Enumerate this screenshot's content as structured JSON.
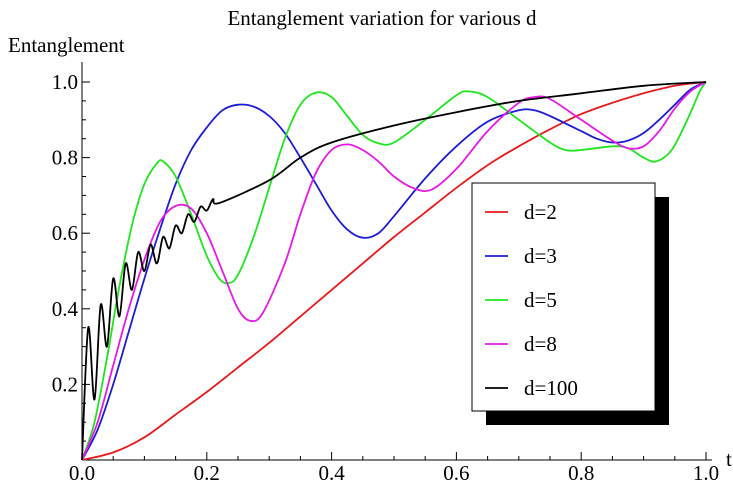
{
  "chart_data": {
    "type": "line",
    "title": "Entanglement variation for various d",
    "xlabel": "t",
    "ylabel": "Entanglement",
    "xlim": [
      0,
      1.0
    ],
    "ylim": [
      0,
      1.0
    ],
    "x_ticks": [
      0.0,
      0.2,
      0.4,
      0.6,
      0.8,
      1.0
    ],
    "y_ticks": [
      0.2,
      0.4,
      0.6,
      0.8,
      1.0
    ],
    "x_tick_labels": [
      "0.0",
      "0.2",
      "0.4",
      "0.6",
      "0.8",
      "1.0"
    ],
    "y_tick_labels": [
      "0.2",
      "0.4",
      "0.6",
      "0.8",
      "1.0"
    ],
    "grid": false,
    "legend_position": "right",
    "series": [
      {
        "name": "d=2",
        "color": "#e8191c",
        "points": [
          [
            0,
            0
          ],
          [
            0.05,
            0.02
          ],
          [
            0.1,
            0.06
          ],
          [
            0.15,
            0.12
          ],
          [
            0.2,
            0.18
          ],
          [
            0.25,
            0.245
          ],
          [
            0.3,
            0.31
          ],
          [
            0.35,
            0.38
          ],
          [
            0.4,
            0.45
          ],
          [
            0.45,
            0.52
          ],
          [
            0.5,
            0.59
          ],
          [
            0.55,
            0.655
          ],
          [
            0.6,
            0.72
          ],
          [
            0.65,
            0.78
          ],
          [
            0.7,
            0.83
          ],
          [
            0.75,
            0.875
          ],
          [
            0.8,
            0.915
          ],
          [
            0.85,
            0.945
          ],
          [
            0.9,
            0.97
          ],
          [
            0.95,
            0.99
          ],
          [
            1.0,
            1.0
          ]
        ]
      },
      {
        "name": "d=3",
        "color": "#1c1cd6",
        "points": [
          [
            0,
            0
          ],
          [
            0.025,
            0.08
          ],
          [
            0.05,
            0.2
          ],
          [
            0.075,
            0.34
          ],
          [
            0.1,
            0.48
          ],
          [
            0.125,
            0.61
          ],
          [
            0.15,
            0.73
          ],
          [
            0.175,
            0.82
          ],
          [
            0.2,
            0.88
          ],
          [
            0.225,
            0.925
          ],
          [
            0.25,
            0.94
          ],
          [
            0.275,
            0.935
          ],
          [
            0.3,
            0.91
          ],
          [
            0.325,
            0.865
          ],
          [
            0.35,
            0.8
          ],
          [
            0.375,
            0.73
          ],
          [
            0.4,
            0.66
          ],
          [
            0.425,
            0.61
          ],
          [
            0.45,
            0.588
          ],
          [
            0.475,
            0.6
          ],
          [
            0.5,
            0.645
          ],
          [
            0.55,
            0.745
          ],
          [
            0.6,
            0.83
          ],
          [
            0.65,
            0.895
          ],
          [
            0.7,
            0.925
          ],
          [
            0.725,
            0.925
          ],
          [
            0.75,
            0.91
          ],
          [
            0.8,
            0.87
          ],
          [
            0.825,
            0.85
          ],
          [
            0.85,
            0.84
          ],
          [
            0.875,
            0.845
          ],
          [
            0.9,
            0.865
          ],
          [
            0.925,
            0.9
          ],
          [
            0.95,
            0.94
          ],
          [
            0.975,
            0.98
          ],
          [
            1.0,
            1.0
          ]
        ]
      },
      {
        "name": "d=5",
        "color": "#1fe51f",
        "points": [
          [
            0,
            0
          ],
          [
            0.02,
            0.1
          ],
          [
            0.04,
            0.27
          ],
          [
            0.06,
            0.46
          ],
          [
            0.08,
            0.62
          ],
          [
            0.1,
            0.73
          ],
          [
            0.12,
            0.785
          ],
          [
            0.13,
            0.79
          ],
          [
            0.15,
            0.75
          ],
          [
            0.175,
            0.65
          ],
          [
            0.2,
            0.54
          ],
          [
            0.22,
            0.48
          ],
          [
            0.235,
            0.468
          ],
          [
            0.25,
            0.49
          ],
          [
            0.275,
            0.59
          ],
          [
            0.3,
            0.72
          ],
          [
            0.325,
            0.85
          ],
          [
            0.35,
            0.94
          ],
          [
            0.375,
            0.972
          ],
          [
            0.4,
            0.96
          ],
          [
            0.425,
            0.91
          ],
          [
            0.45,
            0.86
          ],
          [
            0.475,
            0.838
          ],
          [
            0.5,
            0.84
          ],
          [
            0.55,
            0.9
          ],
          [
            0.6,
            0.965
          ],
          [
            0.62,
            0.975
          ],
          [
            0.65,
            0.96
          ],
          [
            0.7,
            0.9
          ],
          [
            0.75,
            0.84
          ],
          [
            0.775,
            0.82
          ],
          [
            0.8,
            0.82
          ],
          [
            0.85,
            0.83
          ],
          [
            0.875,
            0.825
          ],
          [
            0.9,
            0.8
          ],
          [
            0.92,
            0.79
          ],
          [
            0.945,
            0.82
          ],
          [
            0.97,
            0.9
          ],
          [
            0.99,
            0.975
          ],
          [
            1.0,
            1.0
          ]
        ]
      },
      {
        "name": "d=8",
        "color": "#e619e6",
        "points": [
          [
            0,
            0
          ],
          [
            0.025,
            0.1
          ],
          [
            0.05,
            0.25
          ],
          [
            0.075,
            0.4
          ],
          [
            0.1,
            0.53
          ],
          [
            0.125,
            0.63
          ],
          [
            0.15,
            0.672
          ],
          [
            0.175,
            0.665
          ],
          [
            0.2,
            0.6
          ],
          [
            0.225,
            0.5
          ],
          [
            0.25,
            0.4
          ],
          [
            0.27,
            0.368
          ],
          [
            0.29,
            0.39
          ],
          [
            0.325,
            0.52
          ],
          [
            0.35,
            0.65
          ],
          [
            0.375,
            0.76
          ],
          [
            0.4,
            0.82
          ],
          [
            0.425,
            0.835
          ],
          [
            0.45,
            0.82
          ],
          [
            0.475,
            0.79
          ],
          [
            0.5,
            0.75
          ],
          [
            0.53,
            0.72
          ],
          [
            0.56,
            0.715
          ],
          [
            0.6,
            0.77
          ],
          [
            0.65,
            0.87
          ],
          [
            0.7,
            0.945
          ],
          [
            0.725,
            0.96
          ],
          [
            0.75,
            0.955
          ],
          [
            0.8,
            0.9
          ],
          [
            0.85,
            0.845
          ],
          [
            0.875,
            0.825
          ],
          [
            0.9,
            0.83
          ],
          [
            0.925,
            0.87
          ],
          [
            0.95,
            0.93
          ],
          [
            0.975,
            0.975
          ],
          [
            1.0,
            1.0
          ]
        ]
      },
      {
        "name": "d=100",
        "color": "#000000",
        "points": [
          [
            0,
            0
          ],
          [
            0.01,
            0.35
          ],
          [
            0.02,
            0.16
          ],
          [
            0.03,
            0.41
          ],
          [
            0.04,
            0.3
          ],
          [
            0.05,
            0.48
          ],
          [
            0.06,
            0.38
          ],
          [
            0.07,
            0.52
          ],
          [
            0.08,
            0.45
          ],
          [
            0.09,
            0.55
          ],
          [
            0.1,
            0.5
          ],
          [
            0.11,
            0.57
          ],
          [
            0.12,
            0.52
          ],
          [
            0.13,
            0.59
          ],
          [
            0.14,
            0.56
          ],
          [
            0.15,
            0.62
          ],
          [
            0.16,
            0.6
          ],
          [
            0.17,
            0.65
          ],
          [
            0.18,
            0.63
          ],
          [
            0.19,
            0.67
          ],
          [
            0.2,
            0.66
          ],
          [
            0.21,
            0.69
          ],
          [
            0.22,
            0.68
          ],
          [
            0.3,
            0.74
          ],
          [
            0.35,
            0.8
          ],
          [
            0.4,
            0.84
          ],
          [
            0.5,
            0.885
          ],
          [
            0.6,
            0.92
          ],
          [
            0.7,
            0.95
          ],
          [
            0.8,
            0.97
          ],
          [
            0.9,
            0.99
          ],
          [
            1.0,
            1.0
          ]
        ]
      }
    ]
  }
}
